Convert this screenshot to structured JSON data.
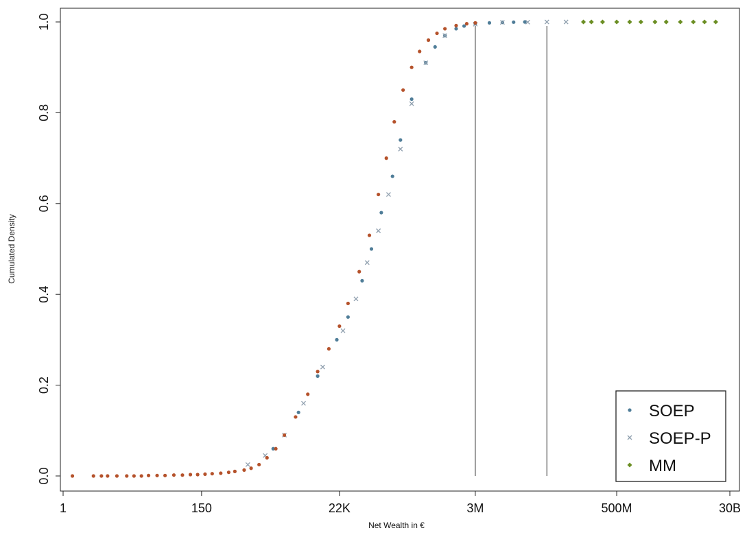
{
  "chart_data": {
    "type": "scatter",
    "title": "",
    "xlabel": "Net Wealth in €",
    "ylabel": "Cumulated Density",
    "xscale": "log",
    "xlim": [
      1,
      30000000000
    ],
    "ylim": [
      0,
      1
    ],
    "x_ticks": [
      {
        "value": 1,
        "label": "1"
      },
      {
        "value": 150,
        "label": "150"
      },
      {
        "value": 22000,
        "label": "22K"
      },
      {
        "value": 3000000,
        "label": "3M"
      },
      {
        "value": 500000000,
        "label": "500M"
      },
      {
        "value": 30000000000,
        "label": "30B"
      }
    ],
    "y_ticks": [
      {
        "value": 0,
        "label": "0.0"
      },
      {
        "value": 0.2,
        "label": "0.2"
      },
      {
        "value": 0.4,
        "label": "0.4"
      },
      {
        "value": 0.6,
        "label": "0.6"
      },
      {
        "value": 0.8,
        "label": "0.8"
      },
      {
        "value": 1,
        "label": "1.0"
      }
    ],
    "reference_lines_x": [
      3000000,
      40000000
    ],
    "grid": false,
    "legend_position": "bottom-right",
    "series": [
      {
        "name": "SOEP",
        "marker": "dot",
        "color": "#4f7d98",
        "x": [
          2000,
          5000,
          10000,
          20000,
          30000,
          50000,
          70000,
          100000,
          150000,
          200000,
          300000,
          500000,
          700000,
          1000000,
          1500000,
          2000000,
          3000000,
          5000000,
          8000000,
          12000000,
          18000000
        ],
        "y": [
          0.06,
          0.14,
          0.22,
          0.3,
          0.35,
          0.43,
          0.5,
          0.58,
          0.66,
          0.74,
          0.83,
          0.91,
          0.945,
          0.97,
          0.985,
          0.991,
          0.996,
          0.998,
          0.999,
          0.9995,
          1.0
        ]
      },
      {
        "name": "SOEP-P",
        "marker": "x",
        "color": "#8f9fae",
        "x": [
          800,
          1500,
          3000,
          6000,
          12000,
          25000,
          40000,
          60000,
          90000,
          130000,
          200000,
          300000,
          500000,
          1000000,
          3000000,
          8000000,
          20000000,
          40000000,
          80000000
        ],
        "y": [
          0.025,
          0.045,
          0.09,
          0.16,
          0.24,
          0.32,
          0.39,
          0.47,
          0.54,
          0.62,
          0.72,
          0.82,
          0.91,
          0.97,
          0.995,
          0.999,
          0.9995,
          1.0,
          1.0
        ]
      },
      {
        "name": "MM",
        "marker": "diamond",
        "color": "#6b8e23",
        "x": [
          150000000,
          200000000,
          300000000,
          500000000,
          800000000,
          1200000000,
          2000000000,
          3000000000,
          5000000000,
          8000000000,
          12000000000,
          18000000000
        ],
        "y": [
          1,
          1,
          1,
          1,
          1,
          1,
          1,
          1,
          1,
          1,
          1,
          1
        ]
      },
      {
        "name": "",
        "marker": "dot",
        "color": "#b5522b",
        "x": [
          1.4,
          3,
          4,
          5,
          7,
          10,
          13,
          17,
          22,
          30,
          40,
          55,
          75,
          100,
          130,
          170,
          220,
          300,
          400,
          500,
          700,
          900,
          1200,
          1600,
          2200,
          3000,
          4500,
          7000,
          10000,
          15000,
          22000,
          30000,
          45000,
          65000,
          90000,
          120000,
          160000,
          220000,
          300000,
          400000,
          550000,
          750000,
          1000000,
          1500000,
          2200000,
          3000000
        ],
        "y": [
          0.0,
          0.0,
          0.0,
          0.0,
          0.0,
          0.0,
          0.0,
          0.0,
          0.001,
          0.001,
          0.001,
          0.002,
          0.002,
          0.003,
          0.003,
          0.004,
          0.005,
          0.006,
          0.008,
          0.01,
          0.013,
          0.017,
          0.025,
          0.04,
          0.06,
          0.09,
          0.13,
          0.18,
          0.23,
          0.28,
          0.33,
          0.38,
          0.45,
          0.53,
          0.62,
          0.7,
          0.78,
          0.85,
          0.9,
          0.935,
          0.96,
          0.975,
          0.985,
          0.992,
          0.996,
          0.998
        ]
      }
    ]
  }
}
